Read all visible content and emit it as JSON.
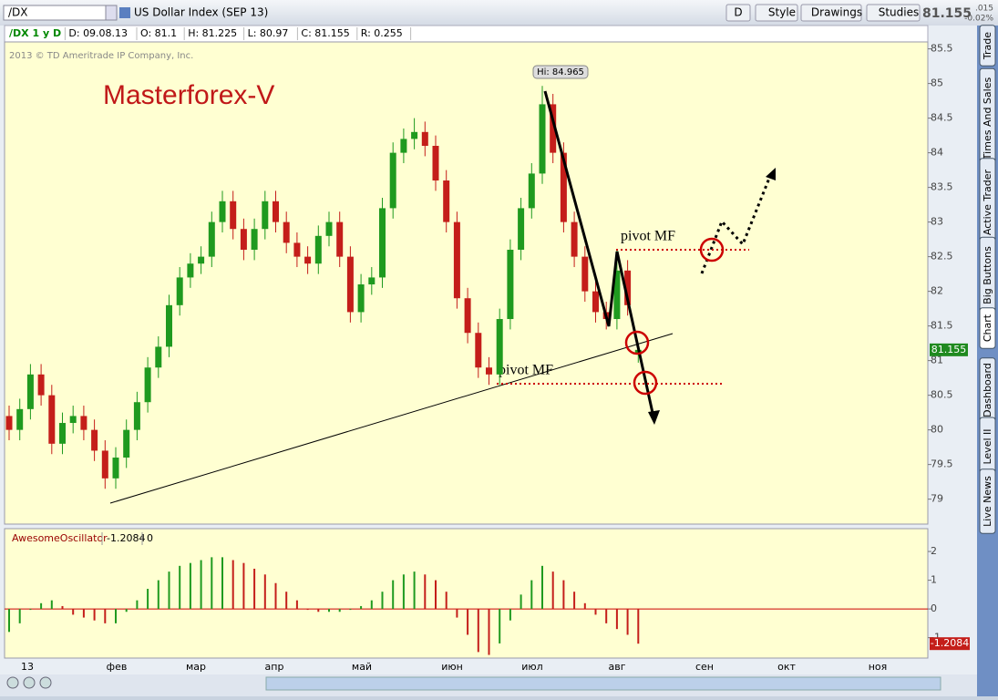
{
  "toolbar": {
    "symbol": "/DX",
    "description": "US Dollar Index (SEP 13)",
    "buttons": [
      "D",
      "Style",
      "Drawings",
      "Studies"
    ],
    "change": ".015",
    "change_pct": "-0.02%"
  },
  "info_bar": [
    "/DX 1 y D",
    "D: 09.08.13",
    "O: 81.1",
    "H: 81.225",
    "L: 80.97",
    "C: 81.155",
    "R: 0.255"
  ],
  "side_tabs": [
    "Trade",
    "Times And Sales",
    "Active Trader",
    "Big Buttons",
    "Chart",
    "Dashboard",
    "Level II",
    "Live News"
  ],
  "chart_data": [
    {
      "type": "candlestick",
      "copyright": "2013 © TD Ameritrade IP Company, Inc.",
      "watermark": "Masterforex-V",
      "hi_label": "Hi: 84.965",
      "pivot_labels": [
        "pivot MF",
        "pivot MF"
      ],
      "x_labels": [
        "13",
        "фев",
        "мар",
        "апр",
        "май",
        "июн",
        "июл",
        "авг",
        "сен",
        "окт",
        "ноя"
      ],
      "open": [
        80.2,
        80.0,
        80.3,
        80.8,
        80.5,
        79.8,
        80.1,
        80.2,
        80.0,
        79.7,
        79.3,
        79.6,
        80.0,
        80.4,
        80.9,
        81.2,
        81.8,
        82.2,
        82.4,
        82.5,
        83.0,
        83.3,
        82.9,
        82.6,
        82.9,
        83.3,
        83.0,
        82.7,
        82.5,
        82.4,
        82.8,
        83.0,
        82.5,
        81.7,
        82.1,
        82.2,
        83.2,
        84.0,
        84.2,
        84.3,
        84.1,
        83.6,
        83.0,
        81.9,
        81.4,
        80.9,
        80.8,
        81.6,
        82.6,
        83.2,
        83.7,
        84.7,
        84.0,
        83.0,
        82.5,
        82.0,
        81.7,
        81.6,
        82.3,
        81.1
      ],
      "high": [
        80.35,
        80.45,
        80.95,
        80.95,
        80.65,
        80.25,
        80.35,
        80.35,
        80.15,
        79.85,
        79.75,
        80.15,
        80.55,
        81.05,
        81.35,
        81.95,
        82.35,
        82.55,
        82.65,
        83.15,
        83.45,
        83.45,
        83.05,
        83.05,
        83.45,
        83.45,
        83.15,
        82.85,
        82.65,
        82.95,
        83.15,
        83.15,
        82.65,
        82.25,
        82.35,
        83.35,
        84.15,
        84.35,
        84.5,
        84.45,
        84.25,
        83.75,
        83.15,
        82.05,
        81.55,
        81.05,
        81.75,
        82.75,
        83.35,
        83.85,
        84.965,
        84.85,
        84.15,
        83.15,
        82.65,
        82.15,
        81.85,
        82.6,
        82.45,
        81.225
      ],
      "low": [
        79.85,
        79.85,
        80.15,
        80.35,
        79.65,
        79.65,
        79.95,
        79.85,
        79.55,
        79.15,
        79.15,
        79.45,
        79.85,
        80.25,
        80.75,
        81.05,
        81.65,
        82.05,
        82.25,
        82.35,
        82.85,
        82.75,
        82.45,
        82.45,
        82.75,
        82.85,
        82.55,
        82.35,
        82.25,
        82.25,
        82.65,
        82.35,
        81.55,
        81.55,
        81.95,
        82.05,
        83.05,
        83.85,
        84.05,
        83.95,
        83.45,
        82.85,
        81.75,
        81.25,
        80.75,
        80.65,
        80.65,
        81.45,
        82.45,
        83.05,
        83.55,
        83.85,
        82.85,
        82.35,
        81.85,
        81.55,
        81.45,
        81.45,
        81.65,
        80.97
      ],
      "close": [
        80.0,
        80.3,
        80.8,
        80.5,
        79.8,
        80.1,
        80.2,
        80.0,
        79.7,
        79.3,
        79.6,
        80.0,
        80.4,
        80.9,
        81.2,
        81.8,
        82.2,
        82.4,
        82.5,
        83.0,
        83.3,
        82.9,
        82.6,
        82.9,
        83.3,
        83.0,
        82.7,
        82.5,
        82.4,
        82.8,
        83.0,
        82.5,
        81.7,
        82.1,
        82.2,
        83.2,
        84.0,
        84.2,
        84.3,
        84.1,
        83.6,
        83.0,
        81.9,
        81.4,
        80.9,
        80.8,
        81.6,
        82.6,
        83.2,
        83.7,
        84.7,
        84.0,
        83.0,
        82.5,
        82.0,
        81.7,
        81.6,
        82.3,
        81.8,
        81.155
      ],
      "up_color": "#1f9a1f",
      "down_color": "#c41e1a",
      "ylim": [
        78.64,
        85.6
      ],
      "yticks": [
        79,
        79.5,
        80,
        80.5,
        81,
        81.5,
        82,
        82.5,
        83,
        83.5,
        84,
        84.5,
        85,
        85.5
      ]
    },
    {
      "type": "bar",
      "title": "AwesomeOscillator",
      "level": 0,
      "values": [
        -0.8,
        -0.5,
        0.0,
        0.2,
        0.3,
        0.1,
        -0.2,
        -0.3,
        -0.4,
        -0.5,
        -0.5,
        -0.1,
        0.3,
        0.7,
        1.0,
        1.3,
        1.5,
        1.6,
        1.7,
        1.8,
        1.8,
        1.7,
        1.6,
        1.4,
        1.2,
        0.9,
        0.6,
        0.3,
        0.0,
        -0.1,
        -0.1,
        -0.1,
        0.0,
        0.1,
        0.3,
        0.6,
        1.0,
        1.2,
        1.3,
        1.2,
        1.0,
        0.6,
        -0.3,
        -0.9,
        -1.5,
        -1.6,
        -1.2,
        -0.4,
        0.5,
        1.0,
        1.5,
        1.3,
        1.0,
        0.6,
        0.2,
        -0.2,
        -0.5,
        -0.7,
        -0.9,
        -1.2084
      ],
      "up_color": "#1f9a1f",
      "down_color": "#c41e1a",
      "ylim": [
        -1.71,
        2.7
      ],
      "yticks": [
        2,
        1,
        0,
        -1
      ]
    }
  ]
}
